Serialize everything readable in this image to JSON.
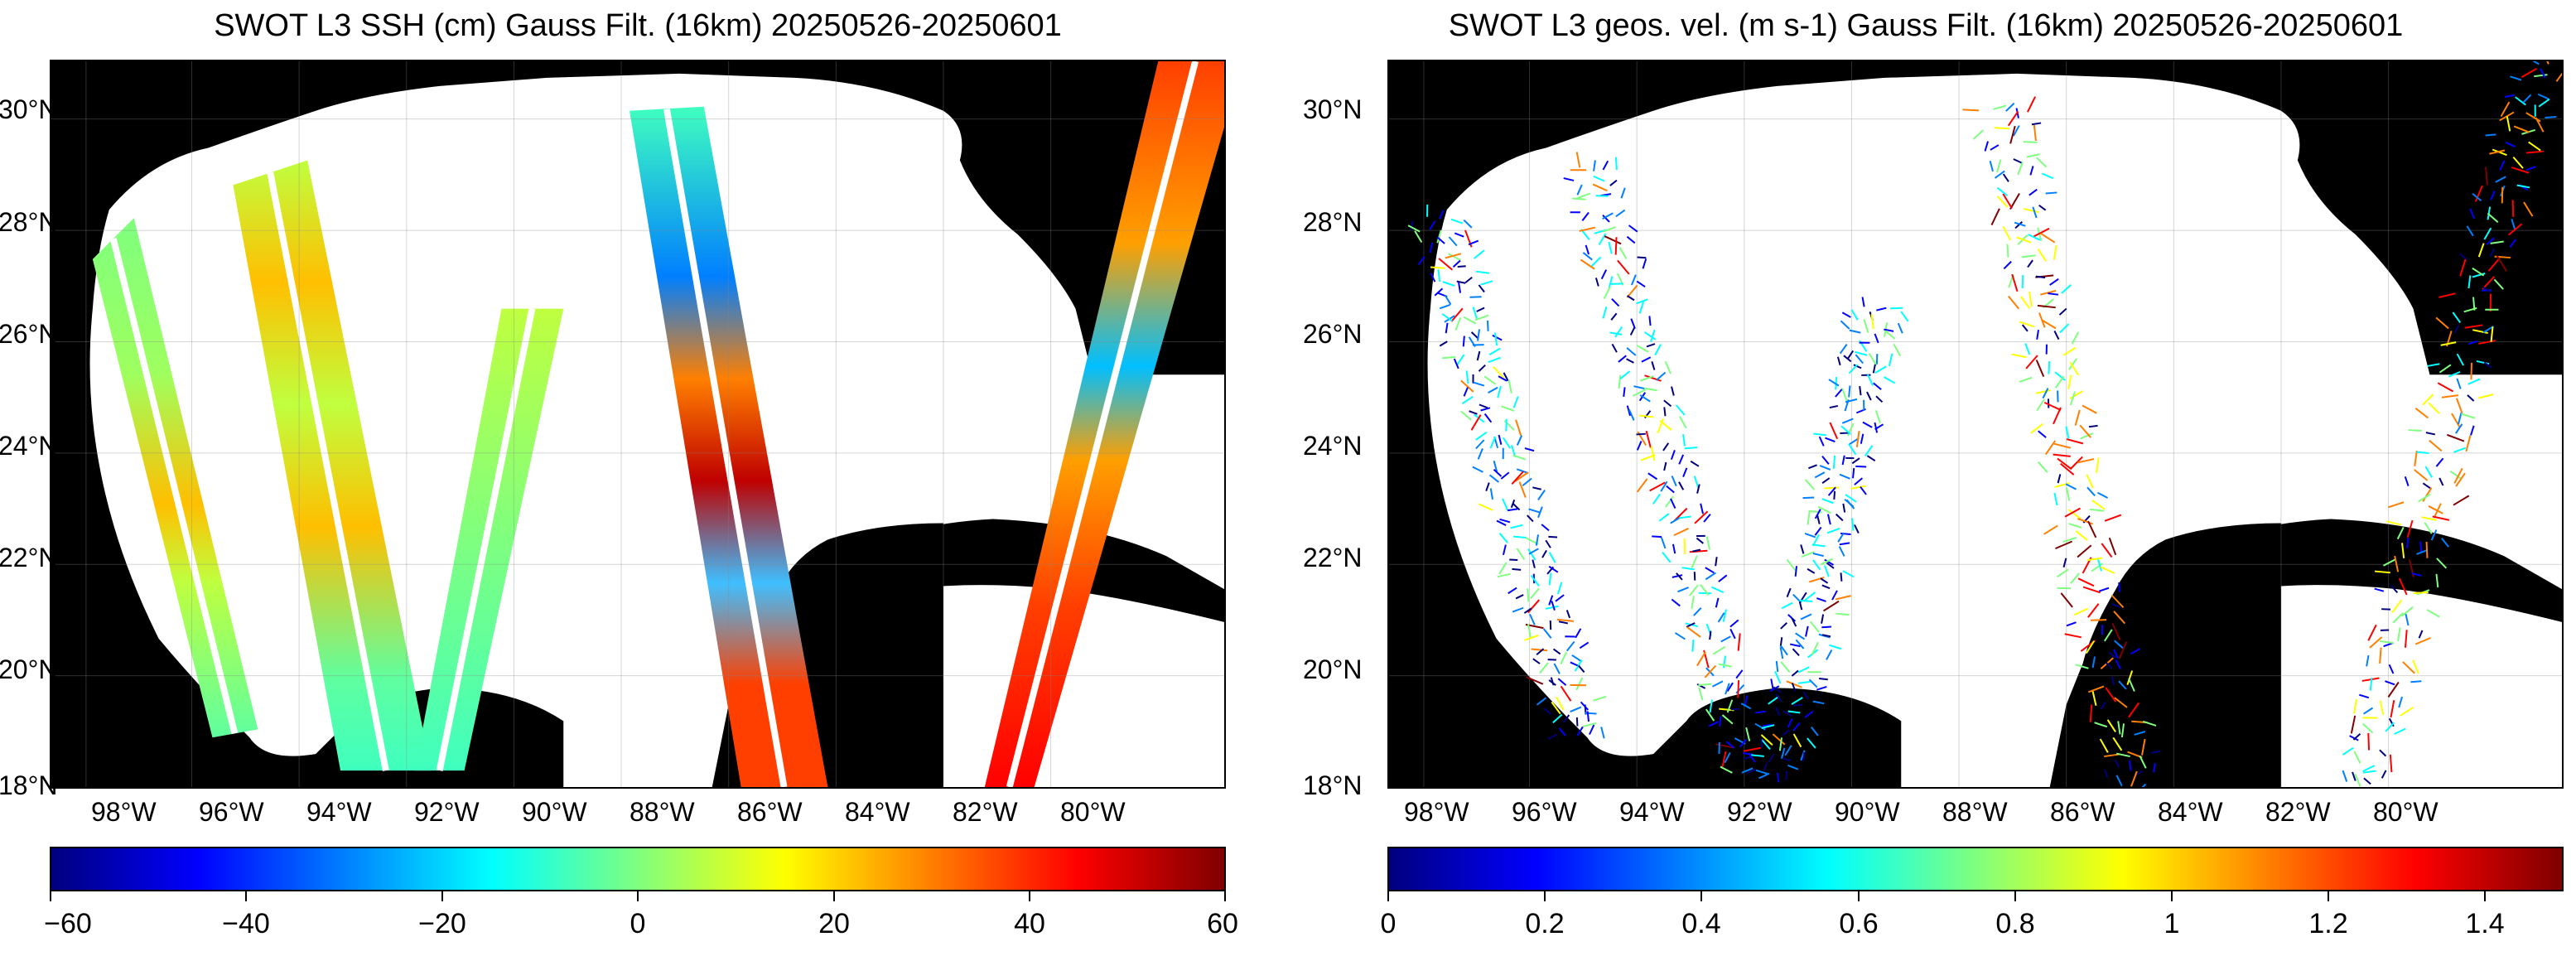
{
  "panels": [
    {
      "title": "SWOT L3 SSH (cm) Gauss Filt. (16km) 20250526-20250601",
      "variable": "ssh",
      "colormap": "jet",
      "colorbar": {
        "min": -60,
        "max": 60,
        "ticks": [
          "−60",
          "−40",
          "−20",
          "0",
          "20",
          "40",
          "60"
        ]
      }
    },
    {
      "title": "SWOT L3 geos. vel. (m s-1) Gauss Filt. (16km) 20250526-20250601",
      "variable": "velocity",
      "colormap": "jet",
      "colorbar": {
        "min": 0,
        "max": 1.5,
        "ticks": [
          "0",
          "0.2",
          "0.4",
          "0.6",
          "0.8",
          "1",
          "1.2",
          "1.4"
        ]
      }
    }
  ],
  "map": {
    "lon_range": [
      -99.5,
      -77.5
    ],
    "lat_range": [
      18,
      31
    ],
    "lon_ticks": [
      "98°W",
      "96°W",
      "94°W",
      "92°W",
      "90°W",
      "88°W",
      "86°W",
      "84°W",
      "82°W",
      "80°W"
    ],
    "lat_ticks": [
      "18°N",
      "20°N",
      "22°N",
      "24°N",
      "26°N",
      "28°N",
      "30°N"
    ],
    "land_color": "#000000",
    "ocean_color": "#ffffff",
    "grid": true
  },
  "colors": {
    "jet_stops": [
      "#00007f",
      "#0000ff",
      "#007fff",
      "#00ffff",
      "#7fff7f",
      "#ffff00",
      "#ff7f00",
      "#ff0000",
      "#7f0000"
    ]
  }
}
